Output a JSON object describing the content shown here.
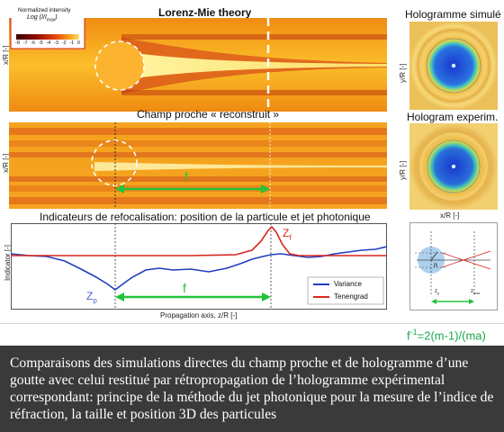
{
  "top_panel": {
    "title": "Lorenz-Mie theory",
    "colorbar_title": "Normalized intensity",
    "colorbar_subtitle": "Log (I/I",
    "colorbar_subscript": "max",
    "colorbar_ticks": [
      "-8",
      "-7",
      "-6",
      "-5",
      "-4",
      "-3",
      "-2",
      "-1",
      "0"
    ],
    "ylabel": "x/R [-]"
  },
  "middle_panel": {
    "title": "Champ proche « reconstruit »",
    "ylabel": "x/R [-]",
    "arrow_label": "f"
  },
  "bottom_panel": {
    "title": "Indicateurs de refocalisation: position de la particule et jet photonique",
    "ylabel": "Indicator [-]",
    "xlabel": "Propagation axis, z/R [-]",
    "zp_label": "Z",
    "zp_sub": "p",
    "zf_label": "Z",
    "zf_sub": "f",
    "arrow_label": "f",
    "legend": [
      {
        "label": "Variance",
        "color": "#1f3fbf"
      },
      {
        "label": "Tenengrad",
        "color": "#d7261e"
      }
    ]
  },
  "right_column": {
    "sim_title": "Hologramme simulé",
    "exp_title": "Hologram experim.",
    "ylabel_top": "y/R [-]",
    "ylabel_mid": "y/R [-]",
    "xlabel": "x/R [-]",
    "schematic_labels": {
      "r": "R",
      "zp": "z",
      "zp_sub": "p",
      "zmax": "z",
      "zmax_sub": "max"
    }
  },
  "formula": {
    "prefix": "f",
    "sup": "-1",
    "rest": "=2(m-1)/(ma)"
  },
  "caption": "Comparaisons des simulations directes du champ proche et de hologramme d’une goutte avec celui restitué par rétropropagation de l’hologramme expérimental correspondant: principe de la méthode du jet photonique pour la mesure de l’indice de réfraction, la taille et position 3D des particules",
  "colors": {
    "accent_green": "#22c43a",
    "field_orange": "#f79a10",
    "field_red": "#c83a12",
    "variance": "#1f3fbf",
    "tenengrad": "#d7261e"
  }
}
